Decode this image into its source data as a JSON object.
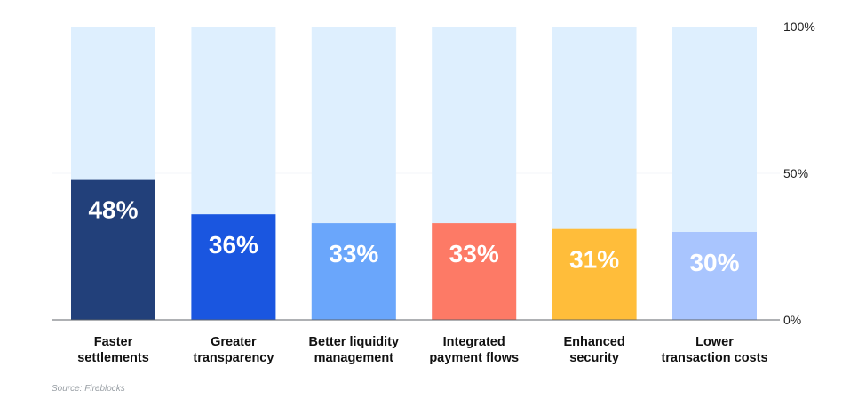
{
  "chart_data": {
    "type": "bar",
    "categories": [
      [
        "Faster",
        "settlements"
      ],
      [
        "Greater",
        "transparency"
      ],
      [
        "Better liquidity",
        "management"
      ],
      [
        "Integrated",
        "payment flows"
      ],
      [
        "Enhanced",
        "security"
      ],
      [
        "Lower",
        "transaction costs"
      ]
    ],
    "values": [
      48,
      36,
      33,
      33,
      31,
      30
    ],
    "value_labels": [
      "48%",
      "36%",
      "33%",
      "33%",
      "31%",
      "30%"
    ],
    "colors": [
      "#22407a",
      "#1a56e0",
      "#6aa6fb",
      "#fd7a66",
      "#ffbd3a",
      "#a9c5fe"
    ],
    "track_color": "#deeffe",
    "ylim": [
      0,
      100
    ],
    "yticks": [
      0,
      50,
      100
    ],
    "ytick_labels": [
      "0%",
      "50%",
      "100%"
    ],
    "y_axis_position": "right",
    "grid": false,
    "title": "",
    "xlabel": "",
    "ylabel": ""
  },
  "source": "Source: Fireblocks"
}
